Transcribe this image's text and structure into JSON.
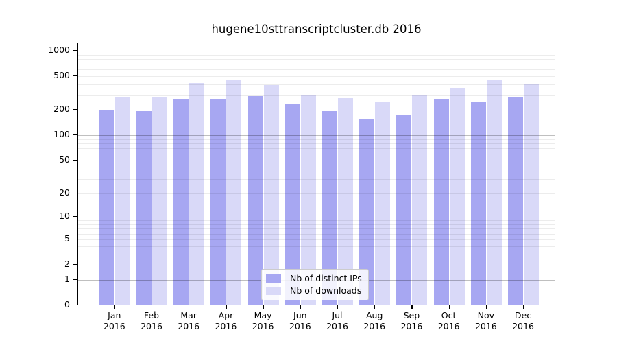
{
  "title": "hugene10sttranscriptcluster.db 2016",
  "colors": {
    "distinct_ips": "#a7a7f2",
    "downloads": "#d9d9f8",
    "axis": "#000000",
    "grid_major": "#bfbfbf",
    "grid_minor": "#ececec",
    "legend_border": "#cccccc"
  },
  "chart_data": {
    "type": "bar",
    "title": "hugene10sttranscriptcluster.db 2016",
    "categories": [
      "Jan",
      "Feb",
      "Mar",
      "Apr",
      "May",
      "Jun",
      "Jul",
      "Aug",
      "Sep",
      "Oct",
      "Nov",
      "Dec"
    ],
    "x_second_line": "2016",
    "series": [
      {
        "name": "Nb of distinct IPs",
        "color": "#a7a7f2",
        "values": [
          192,
          191,
          259,
          265,
          284,
          231,
          191,
          154,
          171,
          260,
          241,
          278
        ]
      },
      {
        "name": "Nb of downloads",
        "color": "#d9d9f8",
        "values": [
          277,
          281,
          409,
          437,
          387,
          291,
          273,
          245,
          295,
          350,
          441,
          404
        ]
      }
    ],
    "xlabel": "",
    "ylabel": "",
    "y_ticks": [
      0,
      1,
      2,
      5,
      10,
      20,
      50,
      100,
      200,
      500,
      1000
    ],
    "y_scale": "log10(1+x)",
    "ylim": [
      0,
      1250
    ],
    "grid": true,
    "legend_position": "bottom-center"
  }
}
